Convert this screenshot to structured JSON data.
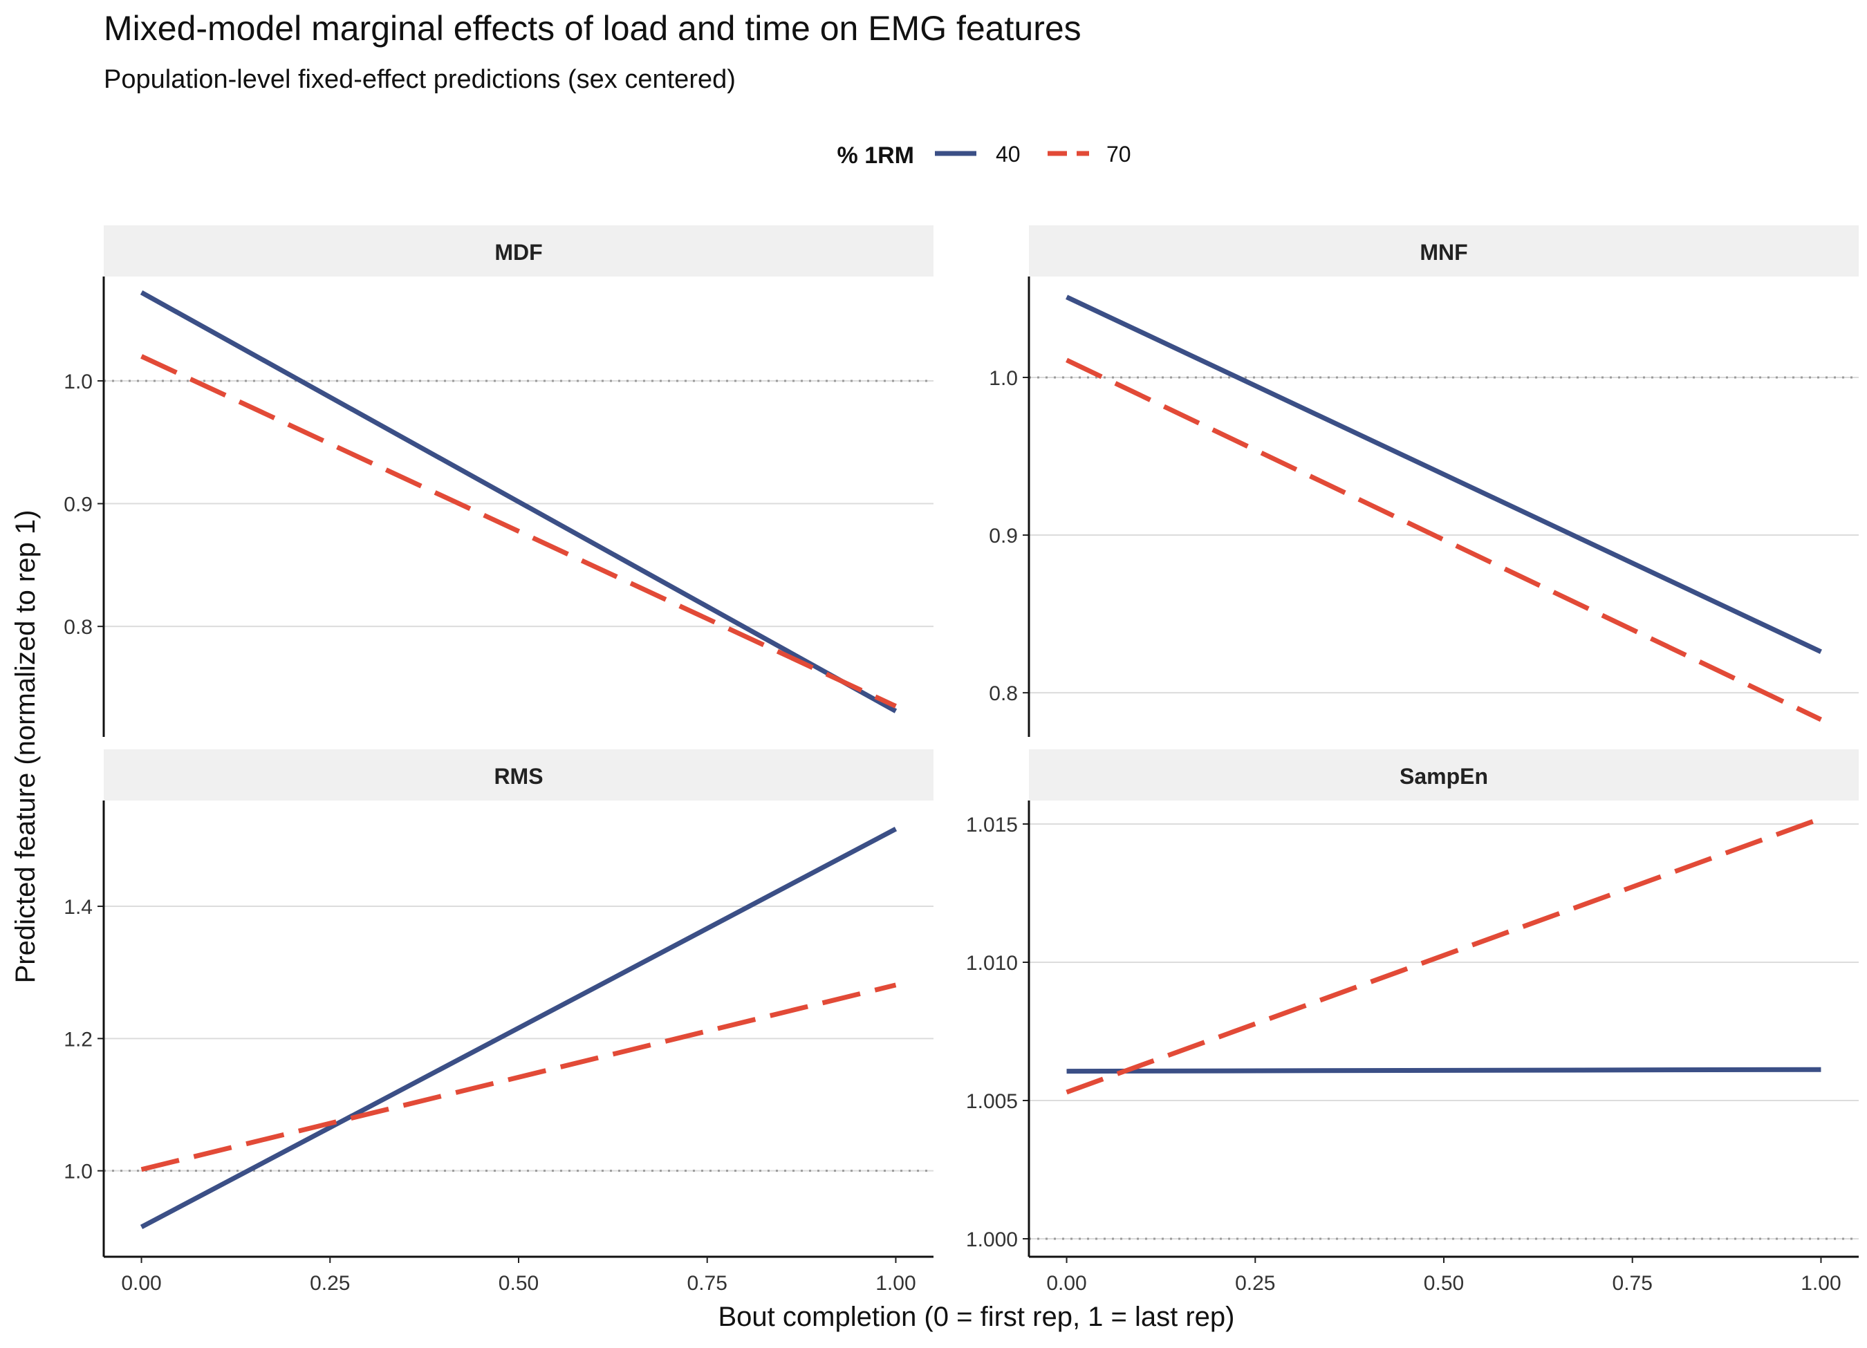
{
  "title": "Mixed-model marginal effects of load and time on EMG features",
  "subtitle": "Population-level fixed-effect predictions (sex centered)",
  "colors": {
    "series_40": "#3b4f86",
    "series_70": "#e24a37",
    "grid": "#dcdcdc",
    "strip": "#f0f0f0",
    "reference": "#9a9a9a"
  },
  "chart_data": {
    "type": "line",
    "xlabel": "Bout completion (0 = first rep, 1 = last rep)",
    "ylabel": "Predicted feature (normalized to rep 1)",
    "legend": {
      "title": "% 1RM",
      "placement": "top",
      "entries": [
        "40",
        "70"
      ]
    },
    "x_ticks": [
      "0.00",
      "0.25",
      "0.50",
      "0.75",
      "1.00"
    ],
    "xlim": [
      -0.05,
      1.05
    ],
    "reference_line": 1.0,
    "panels": [
      {
        "name": "MDF",
        "ylim": [
          0.71,
          1.085
        ],
        "y_ticks": [
          0.8,
          0.9,
          1.0
        ],
        "y_tick_labels": [
          "0.8",
          "0.9",
          "1.0"
        ],
        "series": [
          {
            "name": "40",
            "x": [
              0,
              1
            ],
            "y": [
              1.072,
              0.731
            ]
          },
          {
            "name": "70",
            "x": [
              0,
              1
            ],
            "y": [
              1.02,
              0.735
            ]
          }
        ]
      },
      {
        "name": "MNF",
        "ylim": [
          0.772,
          1.064
        ],
        "y_ticks": [
          0.8,
          0.9,
          1.0
        ],
        "y_tick_labels": [
          "0.8",
          "0.9",
          "1.0"
        ],
        "series": [
          {
            "name": "40",
            "x": [
              0,
              1
            ],
            "y": [
              1.051,
              0.826
            ]
          },
          {
            "name": "70",
            "x": [
              0,
              1
            ],
            "y": [
              1.011,
              0.783
            ]
          }
        ]
      },
      {
        "name": "RMS",
        "ylim": [
          0.87,
          1.56
        ],
        "y_ticks": [
          1.0,
          1.2,
          1.4
        ],
        "y_tick_labels": [
          "1.0",
          "1.2",
          "1.4"
        ],
        "series": [
          {
            "name": "40",
            "x": [
              0,
              1
            ],
            "y": [
              0.915,
              1.517
            ]
          },
          {
            "name": "70",
            "x": [
              0,
              1
            ],
            "y": [
              1.002,
              1.281
            ]
          }
        ]
      },
      {
        "name": "SampEn",
        "ylim": [
          0.99935,
          1.01585
        ],
        "y_ticks": [
          1.0,
          1.005,
          1.01,
          1.015
        ],
        "y_tick_labels": [
          "1.000",
          "1.005",
          "1.010",
          "1.015"
        ],
        "series": [
          {
            "name": "40",
            "x": [
              0,
              1
            ],
            "y": [
              1.00606,
              1.00612
            ]
          },
          {
            "name": "70",
            "x": [
              0,
              1
            ],
            "y": [
              1.0053,
              1.0152
            ]
          }
        ]
      }
    ]
  }
}
